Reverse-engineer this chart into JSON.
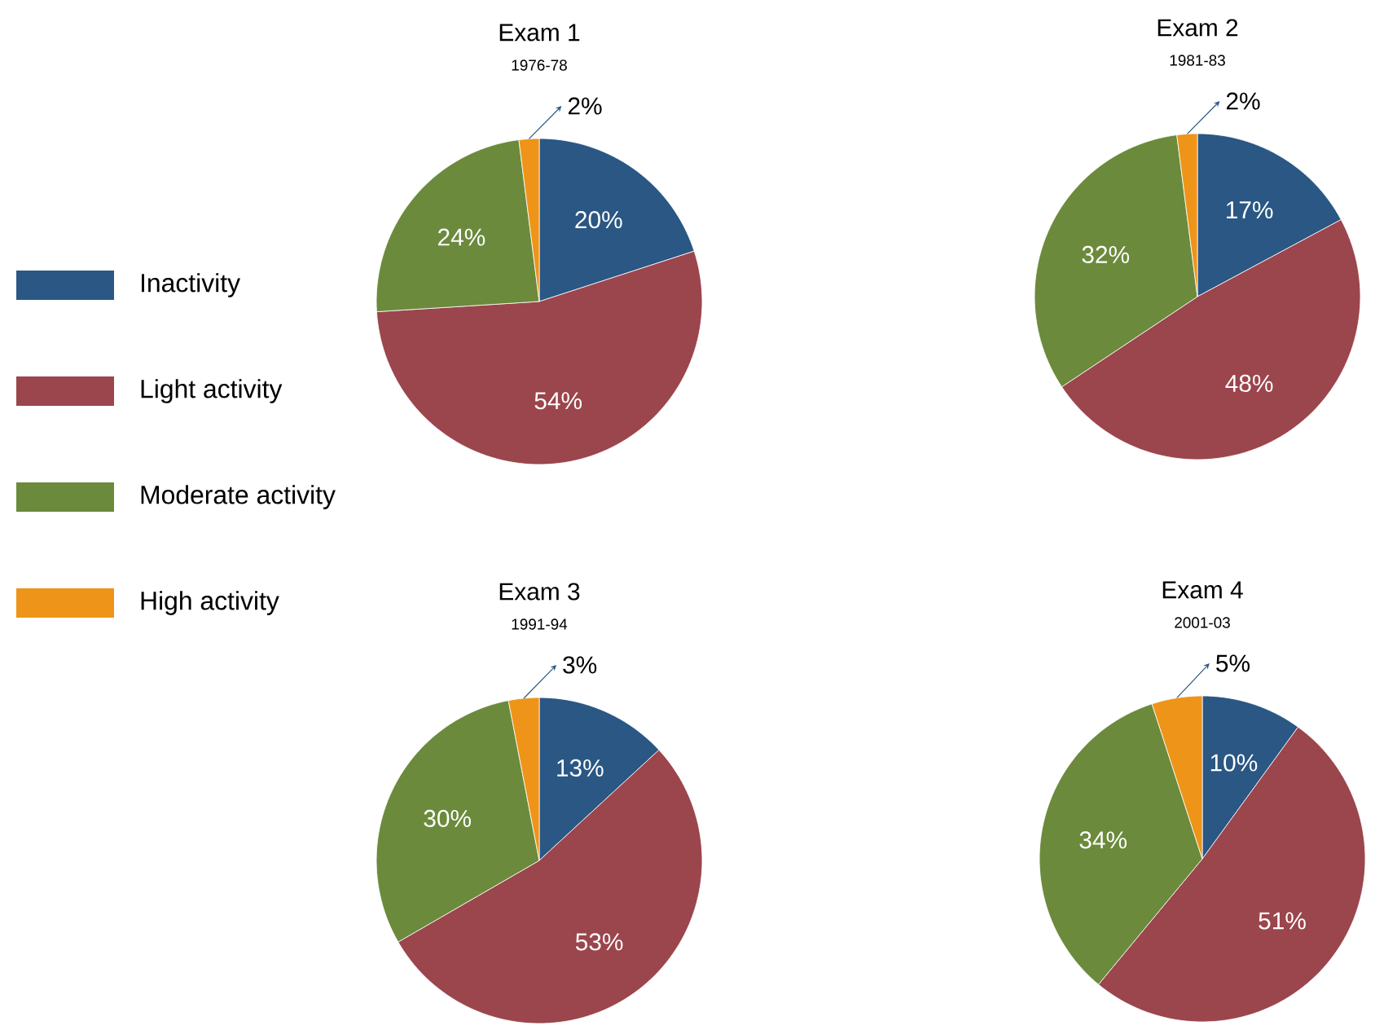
{
  "chart_data": [
    {
      "type": "pie",
      "title": "Exam 1",
      "subtitle": "1976-78",
      "categories": [
        "Inactivity",
        "Light activity",
        "Moderate activity",
        "High activity"
      ],
      "values": [
        20,
        54,
        24,
        2
      ],
      "value_labels": [
        "20%",
        "54%",
        "24%",
        "2%"
      ],
      "colors": [
        "#2a5783",
        "#9b454c",
        "#6b8a3c",
        "#ee9418"
      ],
      "legend": "left"
    },
    {
      "type": "pie",
      "title": "Exam 2",
      "subtitle": "1981-83",
      "categories": [
        null,
        null,
        null,
        null
      ],
      "values": [
        17,
        48,
        32,
        2
      ],
      "value_labels": [
        "17%",
        "48%",
        "32%",
        "2%"
      ],
      "colors": [
        "#2a5783",
        "#9b454c",
        "#6b8a3c",
        "#ee9418"
      ]
    },
    {
      "type": "pie",
      "title": "Exam 3",
      "subtitle": "1991-94",
      "categories": [
        null,
        null,
        null,
        null
      ],
      "values": [
        13,
        53,
        30,
        3
      ],
      "value_labels": [
        "13%",
        "53%",
        "30%",
        "3%"
      ],
      "colors": [
        "#2a5783",
        "#9b454c",
        "#6b8a3c",
        "#ee9418"
      ]
    },
    {
      "type": "pie",
      "title": "Exam 4",
      "subtitle": "2001-03",
      "categories": [
        null,
        null,
        null,
        null
      ],
      "values": [
        10,
        51,
        34,
        5
      ],
      "value_labels": [
        "10%",
        "51%",
        "34%",
        "5%"
      ],
      "colors": [
        "#2a5783",
        "#9b454c",
        "#6b8a3c",
        "#ee9418"
      ]
    }
  ]
}
